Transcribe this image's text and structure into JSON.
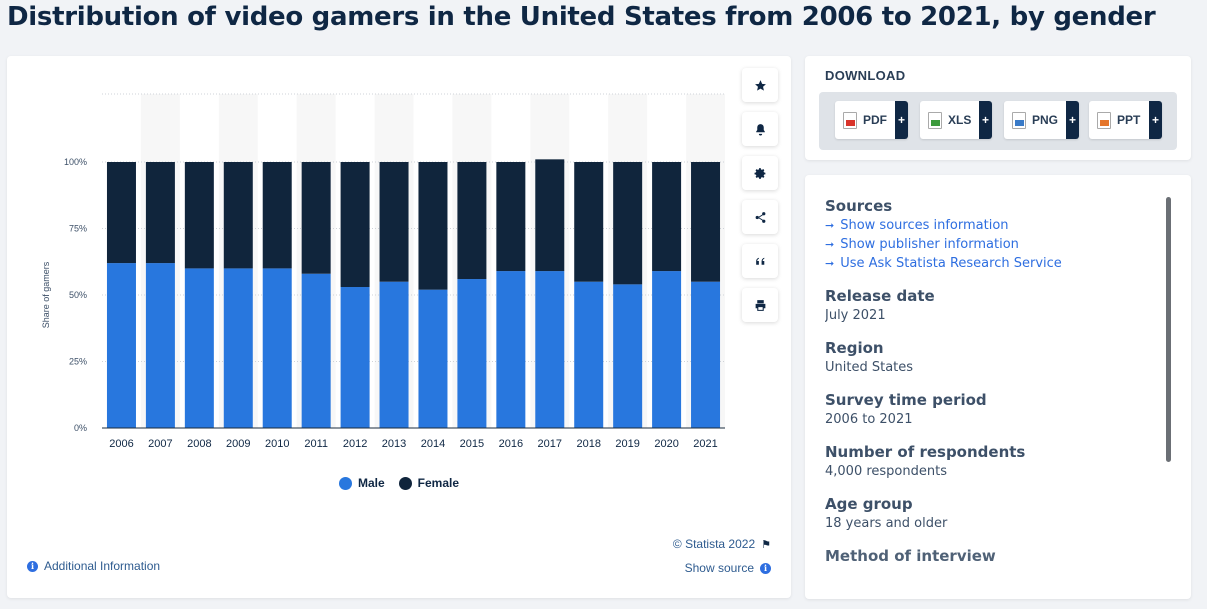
{
  "page": {
    "title": "Distribution of video gamers in the United States from 2006 to 2021, by gender"
  },
  "chart_data": {
    "type": "bar",
    "stacked": true,
    "title": "",
    "xlabel": "",
    "ylabel": "Share of gamers",
    "ylim": [
      0,
      100
    ],
    "yticks": [
      "0%",
      "25%",
      "50%",
      "75%",
      "100%"
    ],
    "categories": [
      "2006",
      "2007",
      "2008",
      "2009",
      "2010",
      "2011",
      "2012",
      "2013",
      "2014",
      "2015",
      "2016",
      "2017",
      "2018",
      "2019",
      "2020",
      "2021"
    ],
    "series": [
      {
        "name": "Male",
        "color": "#2877de",
        "values": [
          62,
          62,
          60,
          60,
          60,
          58,
          53,
          55,
          52,
          56,
          59,
          59,
          55,
          54,
          59,
          55
        ]
      },
      {
        "name": "Female",
        "color": "#10253c",
        "values": [
          38,
          38,
          40,
          40,
          40,
          42,
          47,
          45,
          48,
          44,
          41,
          42,
          45,
          46,
          41,
          45
        ]
      }
    ],
    "grid": true,
    "legend_position": "bottom"
  },
  "chart_footer": {
    "copyright": "© Statista 2022",
    "show_source": "Show source",
    "additional_info": "Additional Information"
  },
  "toolbar": {
    "icons": [
      "star-icon",
      "bell-icon",
      "gear-icon",
      "share-icon",
      "quote-icon",
      "print-icon"
    ]
  },
  "download": {
    "title": "DOWNLOAD",
    "buttons": [
      {
        "label": "PDF",
        "color": "#d9342b"
      },
      {
        "label": "XLS",
        "color": "#3c9a3c"
      },
      {
        "label": "PNG",
        "color": "#3a7bc8"
      },
      {
        "label": "PPT",
        "color": "#e5752a"
      }
    ],
    "plus": "+"
  },
  "info": {
    "sources_heading": "Sources",
    "source_links": [
      "Show sources information",
      "Show publisher information",
      "Use Ask Statista Research Service"
    ],
    "release_date_heading": "Release date",
    "release_date": "July 2021",
    "region_heading": "Region",
    "region": "United States",
    "survey_period_heading": "Survey time period",
    "survey_period": "2006 to 2021",
    "respondents_heading": "Number of respondents",
    "respondents": "4,000 respondents",
    "age_group_heading": "Age group",
    "age_group": "18 years and older",
    "method_heading": "Method of interview"
  }
}
